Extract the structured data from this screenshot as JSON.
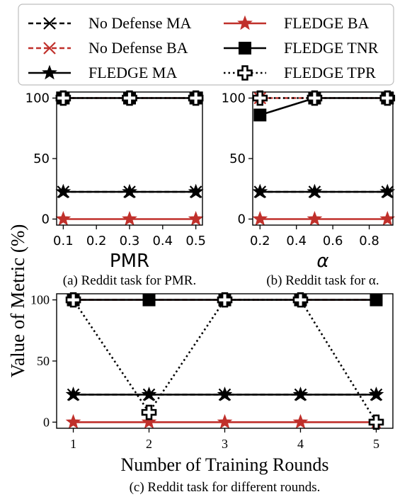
{
  "figure": {
    "ylabel": "Value of Metric (%)",
    "legend": {
      "placement": "top",
      "entries": [
        {
          "label": "No Defense MA",
          "color": "#000000",
          "marker": "x",
          "line": "dashed"
        },
        {
          "label": "FLEDGE BA",
          "color": "#c0302b",
          "marker": "star",
          "line": "solid"
        },
        {
          "label": "No Defense BA",
          "color": "#c0302b",
          "marker": "x",
          "line": "dashed"
        },
        {
          "label": "FLEDGE TNR",
          "color": "#000000",
          "marker": "square",
          "line": "solid"
        },
        {
          "label": "FLEDGE MA",
          "color": "#000000",
          "marker": "star",
          "line": "solid"
        },
        {
          "label": "FLEDGE TPR",
          "color": "#000000",
          "marker": "plus-open",
          "line": "dotted"
        }
      ]
    }
  },
  "chart_data": [
    {
      "type": "line",
      "caption": "(a) Reddit task for PMR.",
      "xlabel": "PMR",
      "ylabel": "",
      "x": [
        0.1,
        0.3,
        0.5
      ],
      "xticks": [
        0.1,
        0.2,
        0.3,
        0.4,
        0.5
      ],
      "xtick_labels": [
        "0.1",
        "0.2",
        "0.3",
        "0.4",
        "0.5"
      ],
      "xlim": [
        0.08,
        0.52
      ],
      "ylim": [
        -5,
        105
      ],
      "yticks": [
        0,
        50,
        100
      ],
      "ytick_labels": [
        "0",
        "50",
        "100"
      ],
      "grid": false,
      "series": [
        {
          "name": "No Defense MA",
          "values": [
            22.5,
            22.5,
            22.5
          ]
        },
        {
          "name": "No Defense BA",
          "values": [
            100,
            100,
            100
          ]
        },
        {
          "name": "FLEDGE MA",
          "values": [
            22.5,
            22.5,
            22.5
          ]
        },
        {
          "name": "FLEDGE BA",
          "values": [
            0,
            0,
            0
          ]
        },
        {
          "name": "FLEDGE TNR",
          "values": [
            100,
            100,
            100
          ]
        },
        {
          "name": "FLEDGE TPR",
          "values": [
            100,
            100,
            100
          ]
        }
      ]
    },
    {
      "type": "line",
      "caption": "(b) Reddit task for α.",
      "xlabel": "α",
      "ylabel": "",
      "x": [
        0.2,
        0.5,
        0.9
      ],
      "xticks": [
        0.2,
        0.4,
        0.6,
        0.8
      ],
      "xtick_labels": [
        "0.2",
        "0.4",
        "0.6",
        "0.8"
      ],
      "xlim": [
        0.16,
        0.93
      ],
      "ylim": [
        -5,
        105
      ],
      "yticks": [
        0,
        50,
        100
      ],
      "ytick_labels": [
        "0",
        "50",
        "100"
      ],
      "grid": false,
      "series": [
        {
          "name": "No Defense MA",
          "values": [
            22.5,
            22.5,
            22.5
          ]
        },
        {
          "name": "No Defense BA",
          "values": [
            100,
            100,
            100
          ]
        },
        {
          "name": "FLEDGE MA",
          "values": [
            22.5,
            22.5,
            22.5
          ]
        },
        {
          "name": "FLEDGE BA",
          "values": [
            0,
            0,
            0
          ]
        },
        {
          "name": "FLEDGE TNR",
          "values": [
            86,
            100,
            100
          ]
        },
        {
          "name": "FLEDGE TPR",
          "values": [
            100,
            100,
            100
          ]
        }
      ]
    },
    {
      "type": "line",
      "caption": "(c) Reddit task for different rounds.",
      "xlabel": "Number of Training Rounds",
      "ylabel": "",
      "x": [
        1,
        2,
        3,
        4,
        5
      ],
      "xticks": [
        1,
        2,
        3,
        4,
        5
      ],
      "xtick_labels": [
        "1",
        "2",
        "3",
        "4",
        "5"
      ],
      "xlim": [
        0.78,
        5.22
      ],
      "ylim": [
        -5,
        105
      ],
      "yticks": [
        0,
        50,
        100
      ],
      "ytick_labels": [
        "0",
        "50",
        "100"
      ],
      "grid": false,
      "series": [
        {
          "name": "No Defense MA",
          "values": [
            22.5,
            22.5,
            22.5,
            22.5,
            22.5
          ]
        },
        {
          "name": "No Defense BA",
          "values": [
            100,
            100,
            100,
            100,
            100
          ]
        },
        {
          "name": "FLEDGE MA",
          "values": [
            22.5,
            22.5,
            22.5,
            22.5,
            22.5
          ]
        },
        {
          "name": "FLEDGE BA",
          "values": [
            0,
            0,
            0,
            0,
            0
          ]
        },
        {
          "name": "FLEDGE TNR",
          "values": [
            100,
            100,
            100,
            100,
            100
          ]
        },
        {
          "name": "FLEDGE TPR",
          "values": [
            100,
            8,
            100,
            100,
            0
          ]
        }
      ]
    }
  ]
}
